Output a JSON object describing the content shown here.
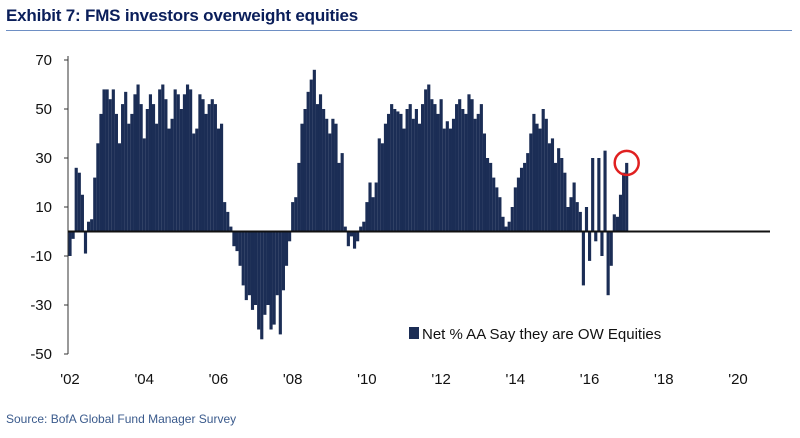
{
  "title": "Exhibit 7: FMS investors overweight equities",
  "source": "Source: BofA Global Fund Manager Survey",
  "colors": {
    "bar": "#1b2d55",
    "highlight_circle": "#e02020",
    "title": "#0a1e5a",
    "source": "#3a5a8c"
  },
  "chart_data": {
    "type": "bar",
    "title": "Exhibit 7: FMS investors overweight equities",
    "xlabel": "",
    "ylabel": "",
    "ylim": [
      -50,
      70
    ],
    "y_ticks": [
      70,
      50,
      30,
      10,
      -10,
      -30,
      -50
    ],
    "x_tick_labels": [
      "'02",
      "'04",
      "'06",
      "'08",
      "'10",
      "'12",
      "'14",
      "'16",
      "'18",
      "'20"
    ],
    "x_tick_years": [
      2002,
      2004,
      2006,
      2008,
      2010,
      2012,
      2014,
      2016,
      2018,
      2020
    ],
    "grid": false,
    "legend_position": "bottom-right",
    "series": [
      {
        "name": "Net % AA Say they are OW Equities",
        "x_start": "2002-01",
        "frequency": "monthly",
        "values": [
          -10,
          -3,
          26,
          24,
          15,
          -9,
          4,
          5,
          22,
          36,
          48,
          58,
          58,
          54,
          58,
          48,
          36,
          52,
          57,
          44,
          48,
          56,
          60,
          52,
          38,
          50,
          56,
          52,
          44,
          58,
          60,
          54,
          42,
          46,
          58,
          56,
          50,
          56,
          60,
          58,
          40,
          42,
          56,
          54,
          48,
          52,
          54,
          52,
          42,
          44,
          12,
          8,
          2,
          -6,
          -8,
          -14,
          -22,
          -28,
          -26,
          -32,
          -30,
          -40,
          -44,
          -34,
          -30,
          -40,
          -38,
          -26,
          -42,
          -24,
          -14,
          -4,
          12,
          14,
          28,
          44,
          50,
          57,
          62,
          66,
          52,
          56,
          50,
          46,
          40,
          46,
          44,
          28,
          32,
          2,
          -6,
          -2,
          -7,
          -4,
          2,
          4,
          12,
          20,
          14,
          20,
          38,
          36,
          44,
          48,
          52,
          50,
          49,
          48,
          42,
          50,
          52,
          46,
          50,
          44,
          52,
          58,
          60,
          54,
          52,
          48,
          54,
          42,
          45,
          42,
          46,
          52,
          54,
          50,
          48,
          56,
          54,
          46,
          48,
          52,
          40,
          30,
          28,
          22,
          18,
          14,
          6,
          2,
          4,
          10,
          18,
          22,
          26,
          28,
          32,
          40,
          48,
          44,
          42,
          50,
          46,
          36,
          38,
          28,
          34,
          30,
          24,
          10,
          14,
          20,
          12,
          8,
          -22,
          10,
          -12,
          30,
          -4,
          30,
          -10,
          33,
          -26,
          -14,
          7,
          6,
          15,
          24,
          28
        ]
      }
    ]
  }
}
